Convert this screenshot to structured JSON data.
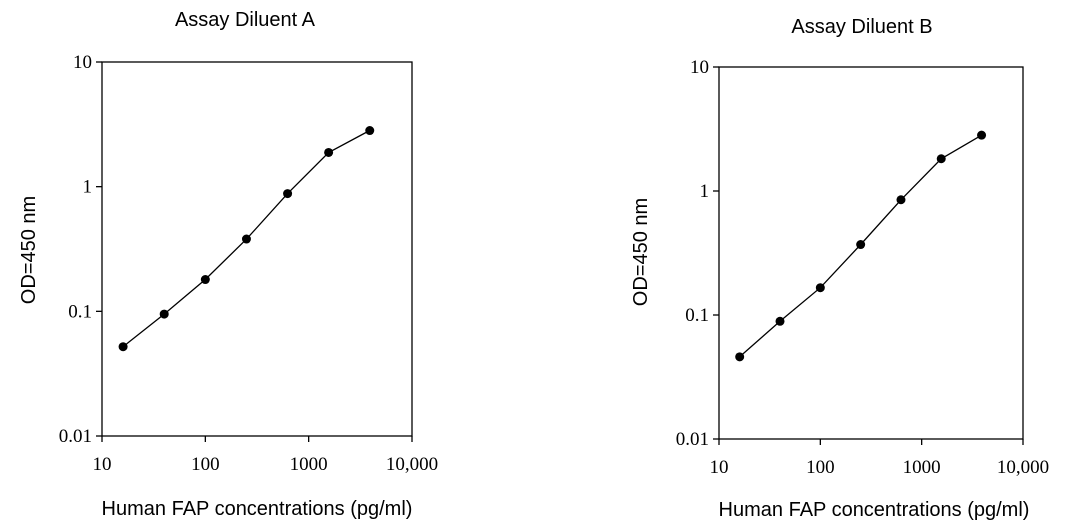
{
  "chart_data": [
    {
      "type": "line",
      "title": "Assay Diluent A",
      "xlabel": "Human FAP concentrations (pg/ml)",
      "ylabel": "OD=450 nm",
      "xscale": "log",
      "yscale": "log",
      "xlim": [
        10,
        10000
      ],
      "ylim": [
        0.01,
        10
      ],
      "xticks": [
        "10",
        "100",
        "1000",
        "10,000"
      ],
      "yticks": [
        "0.01",
        "0.1",
        "1",
        "10"
      ],
      "grid": false,
      "series": [
        {
          "x": [
            16,
            40,
            100,
            250,
            625,
            1560,
            3900
          ],
          "y": [
            0.052,
            0.095,
            0.18,
            0.38,
            0.88,
            1.88,
            2.82
          ]
        }
      ]
    },
    {
      "type": "line",
      "title": "Assay Diluent B",
      "xlabel": "Human FAP concentrations (pg/ml)",
      "ylabel": "OD=450 nm",
      "xscale": "log",
      "yscale": "log",
      "xlim": [
        10,
        10000
      ],
      "ylim": [
        0.01,
        10
      ],
      "xticks": [
        "10",
        "100",
        "1000",
        "10,000"
      ],
      "yticks": [
        "0.01",
        "0.1",
        "1",
        "10"
      ],
      "grid": false,
      "series": [
        {
          "x": [
            16,
            40,
            100,
            250,
            625,
            1560,
            3900
          ],
          "y": [
            0.046,
            0.089,
            0.166,
            0.37,
            0.85,
            1.82,
            2.82
          ]
        }
      ]
    }
  ]
}
